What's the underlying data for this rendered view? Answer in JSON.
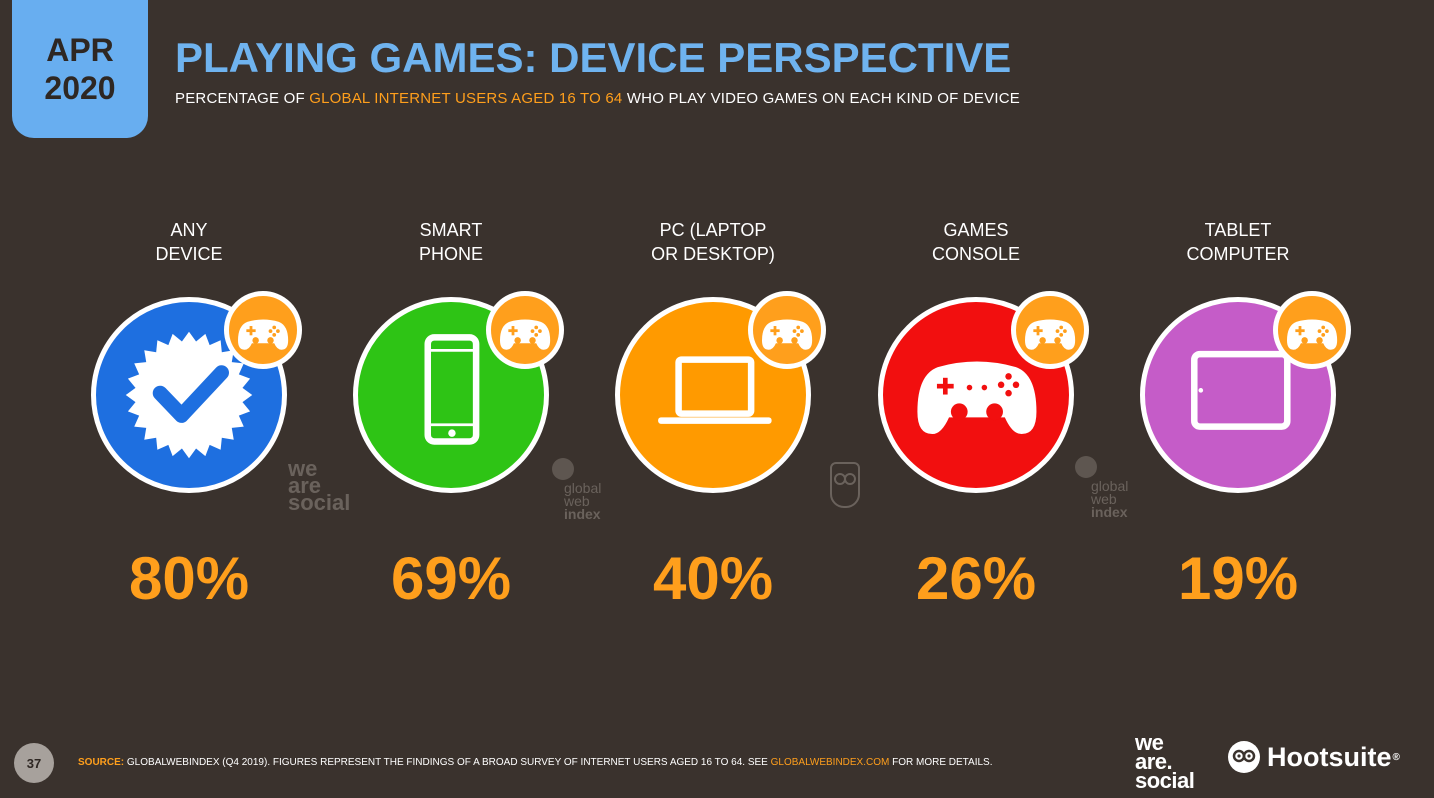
{
  "header": {
    "badge_month": "APR",
    "badge_year": "2020",
    "title": "PLAYING GAMES: DEVICE PERSPECTIVE",
    "subtitle_pre": "PERCENTAGE OF ",
    "subtitle_highlight": "GLOBAL INTERNET USERS AGED 16 TO 64",
    "subtitle_post": " WHO PLAY VIDEO GAMES ON EACH KIND OF DEVICE"
  },
  "chart_data": {
    "type": "table",
    "title": "PLAYING GAMES: DEVICE PERSPECTIVE",
    "categories": [
      "ANY DEVICE",
      "SMART PHONE",
      "PC (LAPTOP OR DESKTOP)",
      "GAMES CONSOLE",
      "TABLET COMPUTER"
    ],
    "values": [
      80,
      69,
      40,
      26,
      19
    ],
    "unit": "%",
    "items": [
      {
        "label_line1": "ANY",
        "label_line2": "DEVICE",
        "value": 80,
        "value_label": "80%",
        "color": "#1e6fe0",
        "icon": "verified-check-icon"
      },
      {
        "label_line1": "SMART",
        "label_line2": "PHONE",
        "value": 69,
        "value_label": "69%",
        "color": "#2ec415",
        "icon": "smartphone-icon"
      },
      {
        "label_line1": "PC (LAPTOP",
        "label_line2": "OR DESKTOP)",
        "value": 40,
        "value_label": "40%",
        "color": "#ff9a00",
        "icon": "laptop-icon"
      },
      {
        "label_line1": "GAMES",
        "label_line2": "CONSOLE",
        "value": 26,
        "value_label": "26%",
        "color": "#f20f0f",
        "icon": "gamepad-icon"
      },
      {
        "label_line1": "TABLET",
        "label_line2": "COMPUTER",
        "value": 19,
        "value_label": "19%",
        "color": "#c55cc8",
        "icon": "tablet-icon"
      }
    ]
  },
  "watermarks": {
    "was_line1": "we",
    "was_line2": "are",
    "was_line3": "social",
    "gwi_line1": "global",
    "gwi_line2": "web",
    "gwi_line3": "index"
  },
  "footer": {
    "page_number": "37",
    "source_label": "SOURCE:",
    "source_text": " GLOBALWEBINDEX (Q4 2019). FIGURES REPRESENT THE FINDINGS OF A BROAD SURVEY OF INTERNET USERS AGED 16 TO 64. SEE ",
    "source_link": "GLOBALWEBINDEX.COM",
    "source_end": " FOR MORE DETAILS.",
    "logo_was_line1": "we",
    "logo_was_line2": "are.",
    "logo_was_line3": "social",
    "logo_hootsuite": "Hootsuite",
    "logo_hootsuite_mark": "®"
  },
  "colors": {
    "background": "#3a322d",
    "accent_orange": "#ff9f1c",
    "title_blue": "#6fb3ef"
  }
}
